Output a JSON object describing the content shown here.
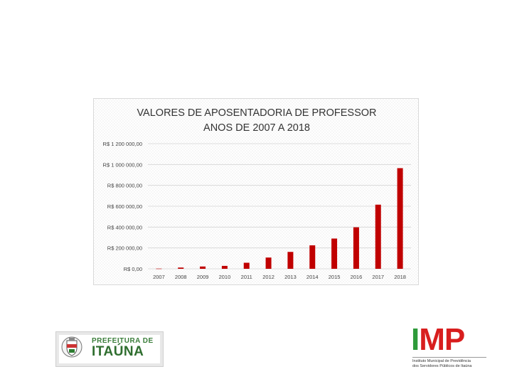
{
  "chart_data": {
    "type": "bar",
    "title": [
      "VALORES DE APOSENTADORIA DE PROFESSOR",
      "ANOS DE 2007 A 2018"
    ],
    "xlabel": "",
    "ylabel": "",
    "categories": [
      "2007",
      "2008",
      "2009",
      "2010",
      "2011",
      "2012",
      "2013",
      "2014",
      "2015",
      "2016",
      "2017",
      "2018"
    ],
    "values": [
      2000,
      12000,
      22000,
      28000,
      58000,
      108000,
      162000,
      225000,
      290000,
      398000,
      615000,
      965000
    ],
    "ylim": [
      0,
      1200000
    ],
    "yticks": [
      0,
      200000,
      400000,
      600000,
      800000,
      1000000,
      1200000
    ],
    "ytick_labels": [
      "R$ 0,00",
      "R$ 200 000,00",
      "R$ 400 000,00",
      "R$ 600 000,00",
      "R$ 800 000,00",
      "R$ 1 000 000,00",
      "R$ 1 200 000,00"
    ],
    "grid": true,
    "legend": "none",
    "bar_color": "#c00000"
  },
  "logos": {
    "prefeitura": {
      "line1": "PREFEITURA DE",
      "line2": "ITAÚNA"
    },
    "imp": {
      "mark": {
        "i": "I",
        "m": "M",
        "p": "P"
      },
      "line1": "Instituto Municipal de Previdência",
      "line2": "dos Servidores Públicos de Itaúna"
    }
  }
}
